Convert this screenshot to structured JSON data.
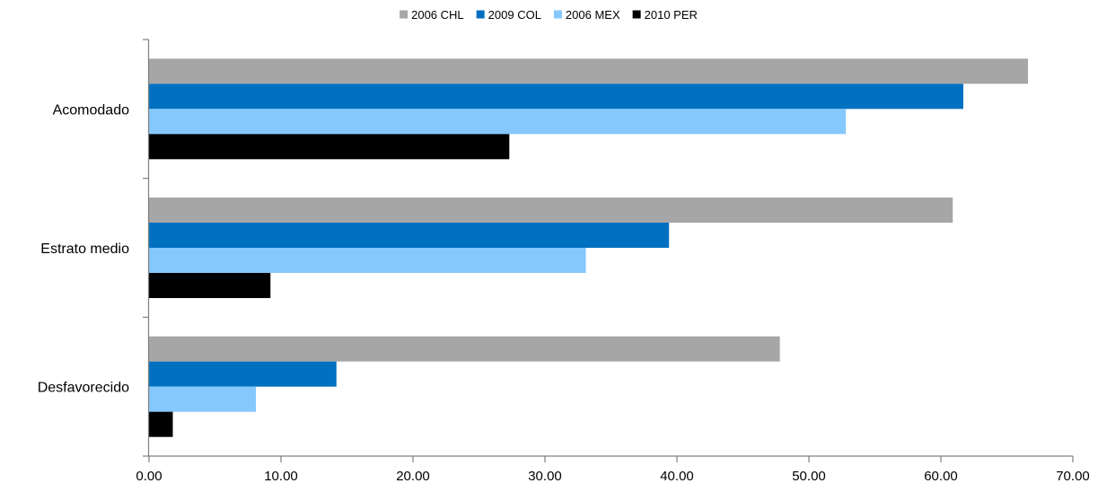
{
  "chart_data": {
    "type": "bar",
    "orientation": "horizontal",
    "categories": [
      "Acomodado",
      "Estrato medio",
      "Desfavorecido"
    ],
    "series": [
      {
        "name": "2006 CHL",
        "color": "#a6a6a6",
        "values": [
          66.6,
          60.9,
          47.8
        ]
      },
      {
        "name": "2009 COL",
        "color": "#0070c0",
        "values": [
          61.7,
          39.4,
          14.2
        ]
      },
      {
        "name": "2006 MEX",
        "color": "#85c8fc",
        "values": [
          52.8,
          33.1,
          8.1
        ]
      },
      {
        "name": "2010 PER",
        "color": "#000000",
        "values": [
          27.3,
          9.2,
          1.8
        ]
      }
    ],
    "x_ticks": [
      "0.00",
      "10.00",
      "20.00",
      "30.00",
      "40.00",
      "50.00",
      "60.00",
      "70.00"
    ],
    "xlim": [
      0,
      70
    ],
    "title": "",
    "xlabel": "",
    "ylabel": "",
    "grid": false,
    "legend_position": "top"
  }
}
